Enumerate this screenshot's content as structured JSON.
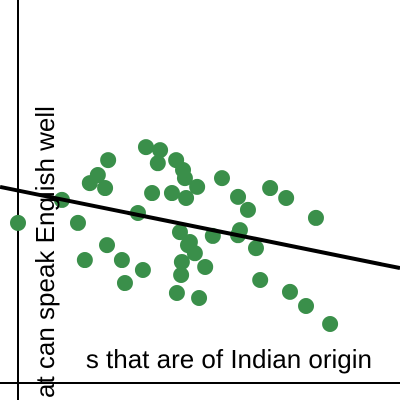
{
  "chart_data": {
    "type": "scatter",
    "x_label": "s that are of Indian origin",
    "y_label": "at can speak English well",
    "xlim": [
      0,
      100
    ],
    "ylim": [
      0,
      100
    ],
    "color": "#3a8f4a",
    "x": [
      0,
      11.5,
      15.7,
      17.5,
      18.8,
      20.9,
      22.8,
      23.6,
      23.3,
      27.2,
      28,
      31.4,
      32.7,
      33.5,
      35.1,
      36.6,
      37.2,
      40.3,
      41.4,
      41.6,
      42.4,
      42.7,
      42.9,
      43.7,
      44,
      43.2,
      44.5,
      45,
      46.3,
      46.9,
      47.4,
      49,
      51,
      53.4,
      57.6,
      57.6,
      58.1,
      60.2,
      62.3,
      63.4,
      66,
      70.2,
      71.2,
      75.4,
      78,
      81.7
    ],
    "values": [
      41.8,
      47.8,
      41.8,
      32.1,
      52.2,
      54.3,
      50.9,
      58.2,
      36,
      32.1,
      26.1,
      44.4,
      29.5,
      61.6,
      49.6,
      57.4,
      60.8,
      49.6,
      58.2,
      23.5,
      39.4,
      28.2,
      31.6,
      53.5,
      48.3,
      55.6,
      36,
      36.8,
      33.9,
      51.2,
      22.2,
      30.3,
      38.4,
      53.5,
      48.6,
      38.6,
      39.9,
      45.2,
      35.2,
      26.9,
      50.9,
      48.3,
      23.8,
      20.1,
      43.1,
      15.4
    ],
    "trend_line": {
      "x": [
        -4.7,
        100
      ],
      "values": [
        51.2,
        30
      ],
      "color": "#000000"
    }
  }
}
